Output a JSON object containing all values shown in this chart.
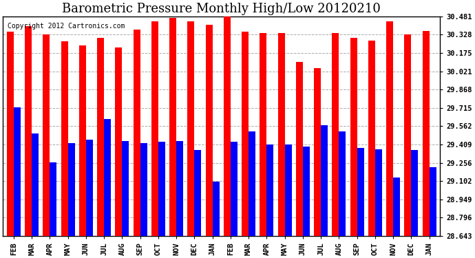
{
  "title": "Barometric Pressure Monthly High/Low 20120210",
  "copyright": "Copyright 2012 Cartronics.com",
  "categories": [
    "FEB",
    "MAR",
    "APR",
    "MAY",
    "JUN",
    "JUL",
    "AUG",
    "SEP",
    "OCT",
    "NOV",
    "DEC",
    "JAN",
    "FEB",
    "MAR",
    "APR",
    "MAY",
    "JUN",
    "JUL",
    "AUG",
    "SEP",
    "OCT",
    "NOV",
    "DEC",
    "JAN"
  ],
  "highs": [
    30.35,
    30.4,
    30.33,
    30.27,
    30.24,
    30.3,
    30.22,
    30.37,
    30.44,
    30.47,
    30.44,
    30.41,
    30.5,
    30.35,
    30.34,
    30.34,
    30.1,
    30.05,
    30.34,
    30.3,
    30.28,
    30.44,
    30.33,
    30.36
  ],
  "lows": [
    29.72,
    29.5,
    29.26,
    29.42,
    29.45,
    29.62,
    29.44,
    29.42,
    29.43,
    29.44,
    29.36,
    29.1,
    29.43,
    29.52,
    29.41,
    29.41,
    29.39,
    29.57,
    29.52,
    29.38,
    29.37,
    29.13,
    29.36,
    29.22
  ],
  "bar_color_high": "#FF0000",
  "bar_color_low": "#0000FF",
  "background_color": "#FFFFFF",
  "grid_color": "#AAAAAA",
  "yticks": [
    28.643,
    28.796,
    28.949,
    29.102,
    29.256,
    29.409,
    29.562,
    29.715,
    29.868,
    30.021,
    30.175,
    30.328,
    30.481
  ],
  "ymin": 28.643,
  "ymax": 30.481,
  "title_fontsize": 13,
  "copyright_fontsize": 7,
  "tick_fontsize": 7.5
}
